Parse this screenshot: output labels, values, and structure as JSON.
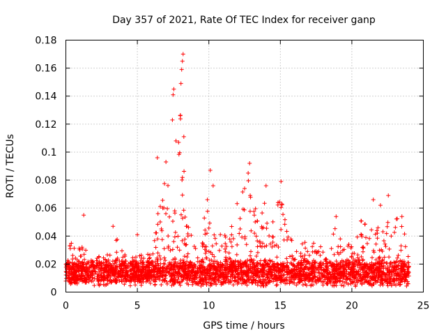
{
  "chart_data": {
    "type": "scatter",
    "title": "Day 357 of 2021, Rate Of TEC Index for receiver ganp",
    "xlabel": "GPS time / hours",
    "ylabel": "ROTI / TECUs",
    "xlim": [
      0,
      25
    ],
    "ylim": [
      0,
      0.18
    ],
    "xticks": [
      "0",
      "5",
      "10",
      "15",
      "20",
      "25"
    ],
    "yticks": [
      "0",
      "0.02",
      "0.04",
      "0.06",
      "0.08",
      "0.1",
      "0.12",
      "0.14",
      "0.16",
      "0.18"
    ],
    "grid": true,
    "marker": "+",
    "color": "#ff0000",
    "series": [
      {
        "name": "ROTI",
        "envelope_hours": [
          0,
          0.5,
          1,
          1.5,
          2,
          2.5,
          3,
          3.5,
          4,
          4.5,
          5,
          5.5,
          6,
          6.5,
          7,
          7.5,
          8,
          8.5,
          9,
          9.5,
          10,
          10.5,
          11,
          11.5,
          12,
          12.5,
          13,
          13.5,
          14,
          14.5,
          15,
          15.5,
          16,
          16.5,
          17,
          17.5,
          18,
          18.5,
          19,
          19.5,
          20,
          20.5,
          21,
          21.5,
          22,
          22.5,
          23,
          23.5,
          24
        ],
        "typical_max": [
          0.028,
          0.038,
          0.034,
          0.03,
          0.027,
          0.026,
          0.028,
          0.04,
          0.028,
          0.024,
          0.03,
          0.026,
          0.035,
          0.06,
          0.085,
          0.1,
          0.13,
          0.06,
          0.032,
          0.05,
          0.06,
          0.05,
          0.04,
          0.045,
          0.065,
          0.08,
          0.09,
          0.06,
          0.07,
          0.05,
          0.075,
          0.045,
          0.035,
          0.036,
          0.035,
          0.038,
          0.03,
          0.04,
          0.05,
          0.038,
          0.035,
          0.05,
          0.055,
          0.05,
          0.045,
          0.065,
          0.055,
          0.05,
          0.03
        ],
        "peaks": [
          {
            "x": 1.25,
            "y": 0.055
          },
          {
            "x": 3.3,
            "y": 0.047
          },
          {
            "x": 5.0,
            "y": 0.041
          },
          {
            "x": 6.4,
            "y": 0.096
          },
          {
            "x": 7.0,
            "y": 0.093
          },
          {
            "x": 7.45,
            "y": 0.123
          },
          {
            "x": 7.5,
            "y": 0.141
          },
          {
            "x": 7.55,
            "y": 0.145
          },
          {
            "x": 7.7,
            "y": 0.108
          },
          {
            "x": 8.0,
            "y": 0.126
          },
          {
            "x": 8.05,
            "y": 0.149
          },
          {
            "x": 8.1,
            "y": 0.159
          },
          {
            "x": 8.15,
            "y": 0.165
          },
          {
            "x": 8.2,
            "y": 0.17
          },
          {
            "x": 8.25,
            "y": 0.111
          },
          {
            "x": 9.9,
            "y": 0.066
          },
          {
            "x": 10.1,
            "y": 0.087
          },
          {
            "x": 10.3,
            "y": 0.076
          },
          {
            "x": 12.5,
            "y": 0.074
          },
          {
            "x": 12.75,
            "y": 0.085
          },
          {
            "x": 12.85,
            "y": 0.092
          },
          {
            "x": 14.0,
            "y": 0.076
          },
          {
            "x": 15.05,
            "y": 0.079
          },
          {
            "x": 15.1,
            "y": 0.063
          },
          {
            "x": 18.9,
            "y": 0.054
          },
          {
            "x": 21.5,
            "y": 0.066
          },
          {
            "x": 22.0,
            "y": 0.062
          },
          {
            "x": 22.55,
            "y": 0.069
          },
          {
            "x": 23.5,
            "y": 0.054
          }
        ]
      }
    ]
  }
}
